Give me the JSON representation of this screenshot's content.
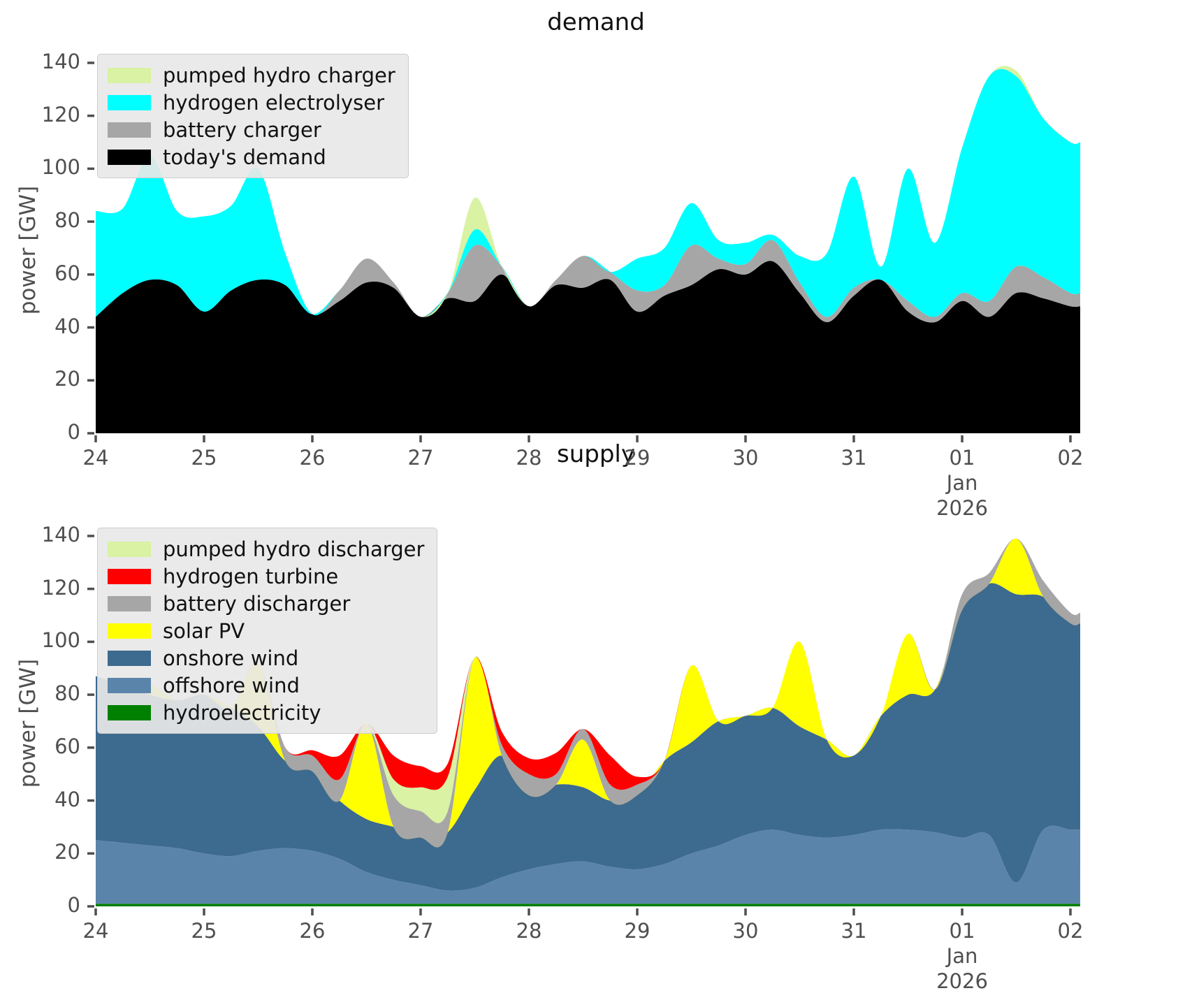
{
  "figure": {
    "background": "#ffffff",
    "tick_color": "#4f4f4f"
  },
  "chart_data": [
    {
      "type": "area",
      "title": "demand",
      "ylabel": "power [GW]",
      "ylim": [
        0,
        140
      ],
      "yticks": [
        0,
        20,
        40,
        60,
        80,
        100,
        120,
        140
      ],
      "xlabel": "",
      "xtick_labels": [
        "24",
        "25",
        "26",
        "27",
        "28",
        "29",
        "30",
        "31",
        "01",
        "02"
      ],
      "xtick_days": [
        0,
        1,
        2,
        3,
        4,
        5,
        6,
        7,
        8,
        9
      ],
      "xtick_sublabels_day": 8,
      "xtick_sublabels": [
        "Jan",
        "2026"
      ],
      "x_start_day": 0,
      "x_step_days": 0.25,
      "x_end_day": 9.09,
      "grid": false,
      "legend_position": "upper left",
      "legend_order": [
        "pumped hydro charger",
        "hydrogen electrolyser",
        "battery charger",
        "today's demand"
      ],
      "series": [
        {
          "name": "today's demand",
          "color": "#000000",
          "values": [
            44,
            53,
            58,
            56,
            46,
            54,
            58,
            56,
            45,
            50,
            57,
            55,
            44,
            51,
            50,
            60,
            48,
            56,
            55,
            58,
            46,
            52,
            56,
            62,
            60,
            65,
            53,
            42,
            52,
            58,
            46,
            42,
            50,
            44,
            53,
            51,
            48
          ]
        },
        {
          "name": "battery charger",
          "color": "#a6a6a6",
          "values": [
            0,
            0,
            0,
            0,
            0,
            0,
            0,
            0,
            0,
            4,
            9,
            2,
            0,
            2,
            21,
            3,
            0,
            2,
            12,
            3,
            8,
            4,
            15,
            4,
            4,
            8,
            4,
            2,
            3,
            0,
            4,
            2,
            3,
            6,
            10,
            8,
            5
          ]
        },
        {
          "name": "hydrogen electrolyser",
          "color": "#00ffff",
          "values": [
            40,
            32,
            47,
            28,
            36,
            32,
            42,
            12,
            0,
            0,
            0,
            0,
            0,
            0,
            6,
            0,
            0,
            0,
            0,
            0,
            12,
            14,
            16,
            7,
            8,
            2,
            10,
            24,
            42,
            5,
            50,
            28,
            55,
            85,
            72,
            60,
            57
          ]
        },
        {
          "name": "pumped hydro charger",
          "color": "#d9f2a3",
          "values": [
            0,
            0,
            0,
            0,
            0,
            0,
            0,
            0,
            0,
            0,
            0,
            0,
            0,
            0,
            12,
            0,
            0,
            0,
            0,
            0,
            0,
            0,
            0,
            0,
            0,
            0,
            0,
            0,
            0,
            0,
            0,
            0,
            0,
            0,
            2,
            0,
            0
          ]
        }
      ]
    },
    {
      "type": "area",
      "title": "supply",
      "ylabel": "power [GW]",
      "ylim": [
        0,
        140
      ],
      "yticks": [
        0,
        20,
        40,
        60,
        80,
        100,
        120,
        140
      ],
      "xlabel": "",
      "xtick_labels": [
        "24",
        "25",
        "26",
        "27",
        "28",
        "29",
        "30",
        "31",
        "01",
        "02"
      ],
      "xtick_days": [
        0,
        1,
        2,
        3,
        4,
        5,
        6,
        7,
        8,
        9
      ],
      "xtick_sublabels_day": 8,
      "xtick_sublabels": [
        "Jan",
        "2026"
      ],
      "x_start_day": 0,
      "x_step_days": 0.25,
      "x_end_day": 9.09,
      "grid": false,
      "legend_position": "upper left",
      "legend_order": [
        "pumped hydro discharger",
        "hydrogen turbine",
        "battery discharger",
        "solar PV",
        "onshore wind",
        "offshore wind",
        "hydroelectricity"
      ],
      "series": [
        {
          "name": "hydroelectricity",
          "color": "#008000",
          "values": [
            1,
            1,
            1,
            1,
            1,
            1,
            1,
            1,
            1,
            1,
            1,
            1,
            1,
            1,
            1,
            1,
            1,
            1,
            1,
            1,
            1,
            1,
            1,
            1,
            1,
            1,
            1,
            1,
            1,
            1,
            1,
            1,
            1,
            1,
            1,
            1,
            1
          ]
        },
        {
          "name": "offshore wind",
          "color": "#5b84ab",
          "values": [
            24,
            23,
            22,
            21,
            19,
            18,
            20,
            21,
            20,
            17,
            12,
            9,
            7,
            5,
            6,
            10,
            13,
            15,
            16,
            14,
            13,
            15,
            19,
            22,
            26,
            28,
            26,
            25,
            26,
            28,
            28,
            27,
            25,
            26,
            8,
            28,
            28
          ]
        },
        {
          "name": "onshore wind",
          "color": "#3d6a8f",
          "values": [
            62,
            60,
            57,
            56,
            60,
            56,
            47,
            33,
            30,
            22,
            20,
            20,
            18,
            22,
            37,
            46,
            28,
            30,
            28,
            25,
            28,
            39,
            42,
            47,
            45,
            46,
            41,
            37,
            30,
            43,
            51,
            54,
            86,
            95,
            109,
            88,
            78
          ]
        },
        {
          "name": "solar PV",
          "color": "#ffff00",
          "values": [
            0,
            0,
            4,
            0,
            0,
            0,
            24,
            0,
            0,
            0,
            36,
            0,
            0,
            0,
            50,
            0,
            0,
            0,
            18,
            0,
            0,
            0,
            29,
            0,
            0,
            0,
            32,
            0,
            0,
            0,
            23,
            0,
            0,
            0,
            21,
            0,
            0
          ]
        },
        {
          "name": "battery discharger",
          "color": "#a6a6a6",
          "values": [
            0,
            0,
            0,
            0,
            0,
            0,
            0,
            5,
            6,
            8,
            0,
            12,
            10,
            8,
            0,
            4,
            8,
            4,
            4,
            6,
            4,
            0,
            0,
            0,
            0,
            0,
            0,
            0,
            0,
            0,
            0,
            0,
            6,
            4,
            0,
            6,
            4
          ]
        },
        {
          "name": "pumped hydro discharger",
          "color": "#d9f2a3",
          "values": [
            0,
            0,
            0,
            0,
            0,
            0,
            0,
            0,
            0,
            0,
            0,
            6,
            9,
            13,
            0,
            0,
            0,
            0,
            0,
            0,
            0,
            0,
            0,
            0,
            0,
            0,
            0,
            0,
            0,
            0,
            0,
            0,
            0,
            0,
            0,
            0,
            0
          ]
        },
        {
          "name": "hydrogen turbine",
          "color": "#ff0000",
          "values": [
            0,
            0,
            0,
            0,
            0,
            0,
            0,
            0,
            2,
            9,
            0,
            9,
            8,
            5,
            0,
            5,
            6,
            8,
            0,
            11,
            3,
            0,
            0,
            0,
            0,
            0,
            0,
            0,
            0,
            0,
            0,
            0,
            0,
            0,
            0,
            0,
            0
          ]
        }
      ]
    }
  ]
}
